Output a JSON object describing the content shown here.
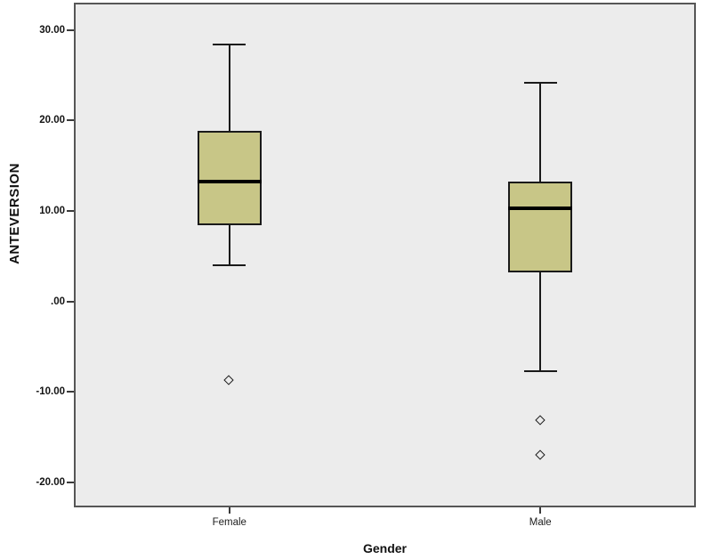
{
  "chart_data": {
    "type": "boxplot",
    "title": "",
    "xlabel": "Gender",
    "ylabel": "ANTEVERSION",
    "categories": [
      "Female",
      "Male"
    ],
    "y_ticks": [
      30,
      20,
      10,
      0,
      -10,
      -20
    ],
    "y_tick_labels": [
      "30.00",
      "20.00",
      "10.00",
      ".00",
      "-10.00",
      "-20.00"
    ],
    "ylim": [
      -22.8,
      33.05
    ],
    "grid": false,
    "legend": "none",
    "series": [
      {
        "name": "Female",
        "whisker_low": 4.0,
        "q1": 8.4,
        "median": 13.3,
        "q3": 18.9,
        "whisker_high": 28.4,
        "outliers": [
          -8.8
        ]
      },
      {
        "name": "Male",
        "whisker_low": -7.7,
        "q1": 3.2,
        "median": 10.3,
        "q3": 13.3,
        "whisker_high": 24.2,
        "outliers": [
          -13.2,
          -17.0
        ]
      }
    ],
    "colors": {
      "box_fill": "#c8c687",
      "box_border": "#1a1a1a",
      "median": "#000000",
      "whisker": "#1a1a1a",
      "plot_bg": "#ececec",
      "frame_border": "#565656",
      "tick": "#3a3a3a",
      "text": "#141414"
    }
  }
}
